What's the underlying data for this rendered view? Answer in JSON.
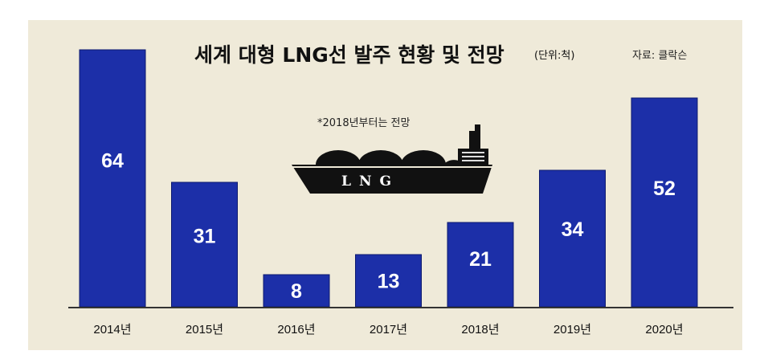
{
  "chart_data": {
    "type": "bar",
    "title": "세계 대형 LNG선 발주 현황 및 전망",
    "unit": "(단위:척)",
    "source": "자료: 클락슨",
    "note": "*2018년부터는 전망",
    "categories": [
      "2014년",
      "2015년",
      "2016년",
      "2017년",
      "2018년",
      "2019년",
      "2020년"
    ],
    "values": [
      64,
      31,
      8,
      13,
      21,
      34,
      52
    ],
    "ylim": [
      0,
      64
    ],
    "xlabel": "",
    "ylabel": "",
    "grid": false,
    "bar_color": "#1c2fa8"
  },
  "illustration": {
    "ship_label": "LNG"
  },
  "colors": {
    "background": "#efead9",
    "bar": "#1c2fa8",
    "axis": "#333333"
  }
}
